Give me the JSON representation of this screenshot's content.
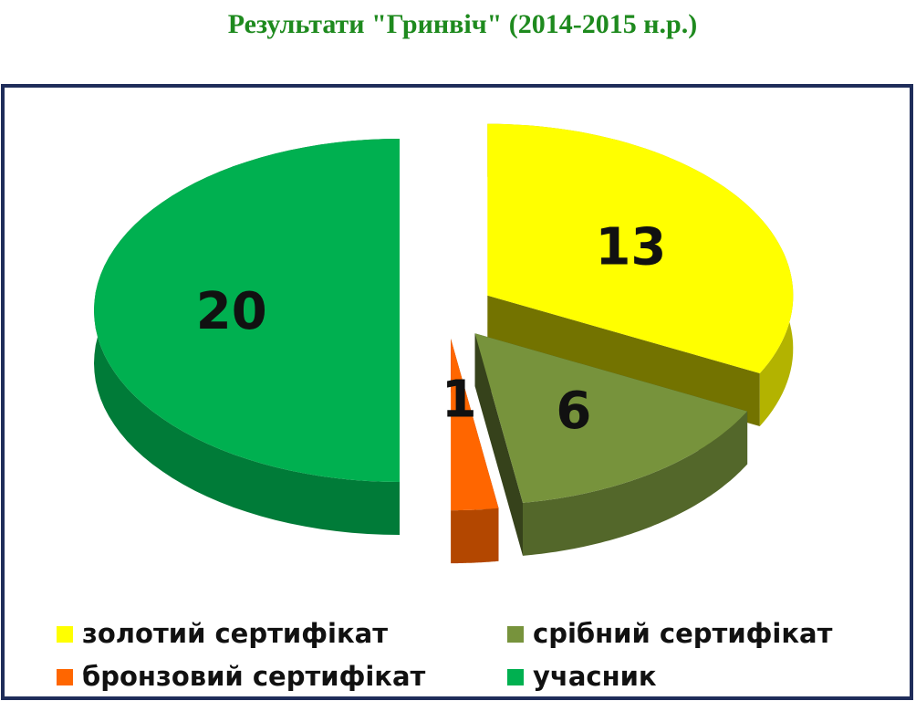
{
  "chart_data": {
    "type": "pie",
    "title": "Результати \"Гринвіч\" (2014-2015 н.р.)",
    "categories": [
      "золотий сертифікат",
      "срібний сертифікат",
      "бронзовий  сертифікат",
      "учасник"
    ],
    "values": [
      13,
      6,
      1,
      20
    ],
    "colors": [
      "#ffff00",
      "#77933c",
      "#ff6600",
      "#00b050"
    ],
    "legend": "bottom"
  }
}
